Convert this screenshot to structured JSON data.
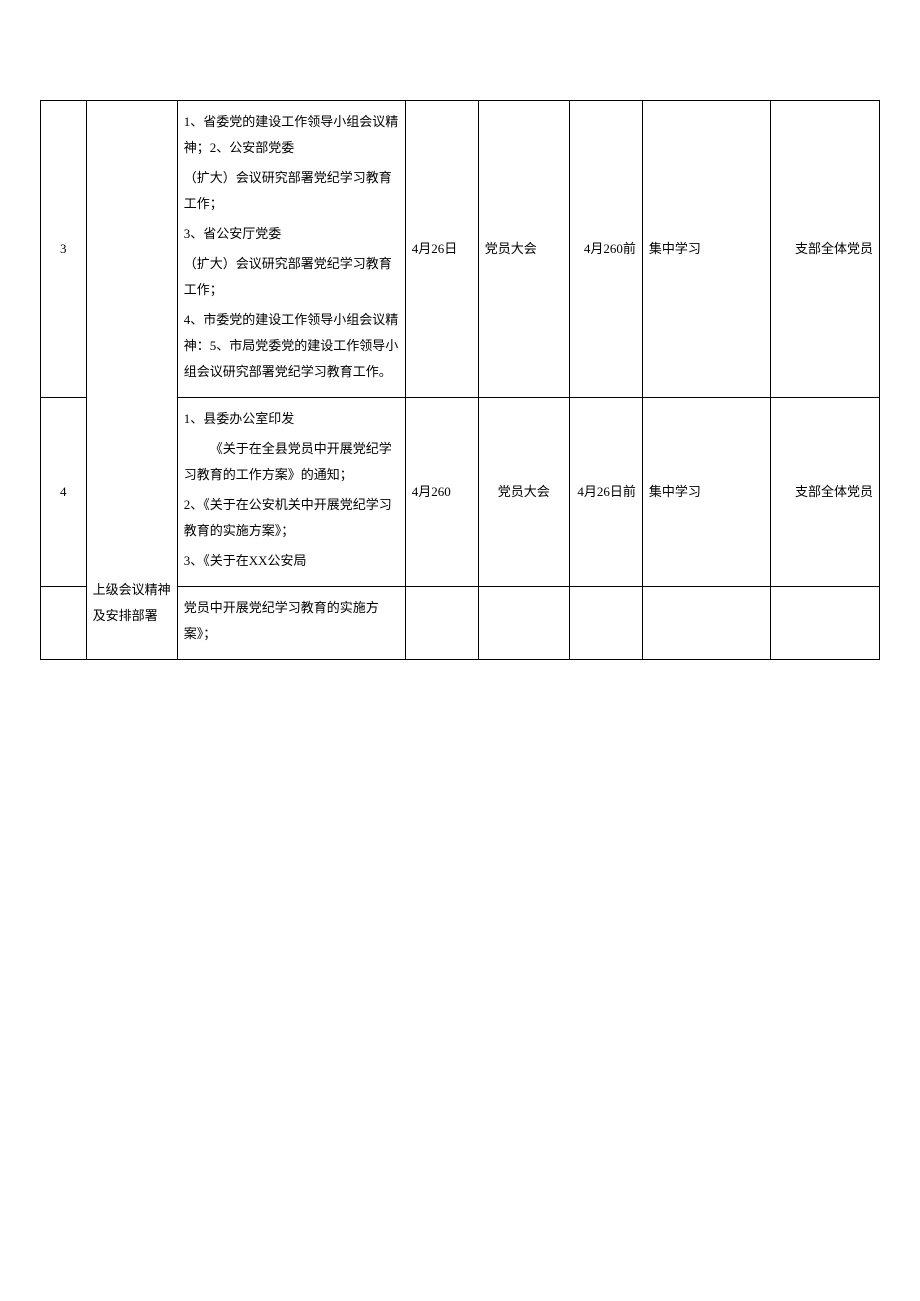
{
  "table": {
    "rows": [
      {
        "num": "3",
        "category": "上级会议精神及安排部署",
        "content_lines": [
          "1、省委党的建设工作领导小组会议精神；2、公安部党委",
          "（扩大）会议研究部署党纪学习教育工作；",
          "3、省公安厅党委",
          "（扩大）会议研究部署党纪学习教育工作；",
          "4、市委党的建设工作领导小组会议精神：5、市局党委党的建设工作领导小组会议研究部署党纪学习教育工作。"
        ],
        "date": "4月26日",
        "meeting": "党员大会",
        "deadline": "4月260前",
        "method": "集中学习",
        "people": "支部全体党员"
      },
      {
        "num": "4",
        "content_lines": [
          "1、县委办公室印发",
          "《关于在全县党员中开展党纪学习教育的工作方案》的通知；",
          "2、《关于在公安机关中开展党纪学习教育的实施方案》；",
          "3、《关于在XX公安局"
        ],
        "date": "4月260",
        "meeting": "党员大会",
        "deadline": "4月26日前",
        "method": "集中学习",
        "people": "支部全体党员"
      },
      {
        "content_continuation": "党员中开展党纪学习教育的实施方案》；"
      }
    ]
  }
}
